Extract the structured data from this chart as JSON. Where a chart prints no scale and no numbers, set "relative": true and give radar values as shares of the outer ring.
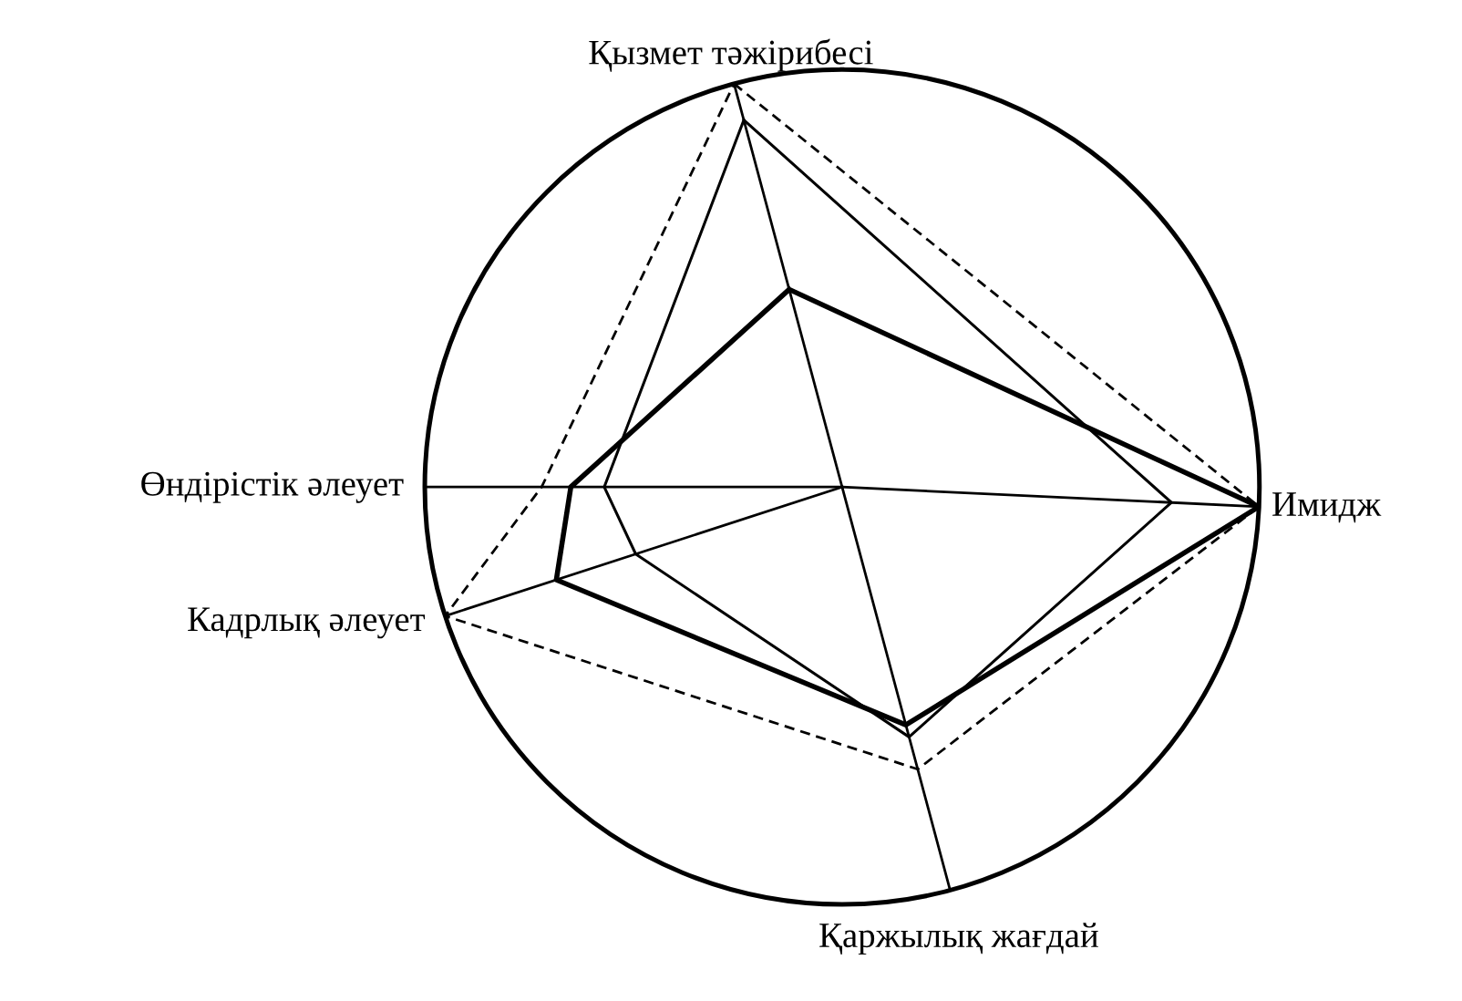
{
  "chart_data": {
    "type": "radar",
    "relative": true,
    "categories": [
      "Қызмет тәжірибесі",
      "Имидж",
      "Қаржылық жағдай",
      "Кадрлық әлеует",
      "Өндірістік әлеует"
    ],
    "series": [
      {
        "color": "#000000",
        "line_style": "solid",
        "values": [
          0.49,
          1.0,
          0.59,
          0.72,
          0.65
        ]
      },
      {
        "color": "#000000",
        "line_style": "solid",
        "values": [
          0.91,
          0.79,
          0.62,
          0.52,
          0.57
        ]
      },
      {
        "color": "#000000",
        "line_style": "dashed",
        "values": [
          1.0,
          1.0,
          0.7,
          1.0,
          0.72
        ]
      }
    ]
  }
}
